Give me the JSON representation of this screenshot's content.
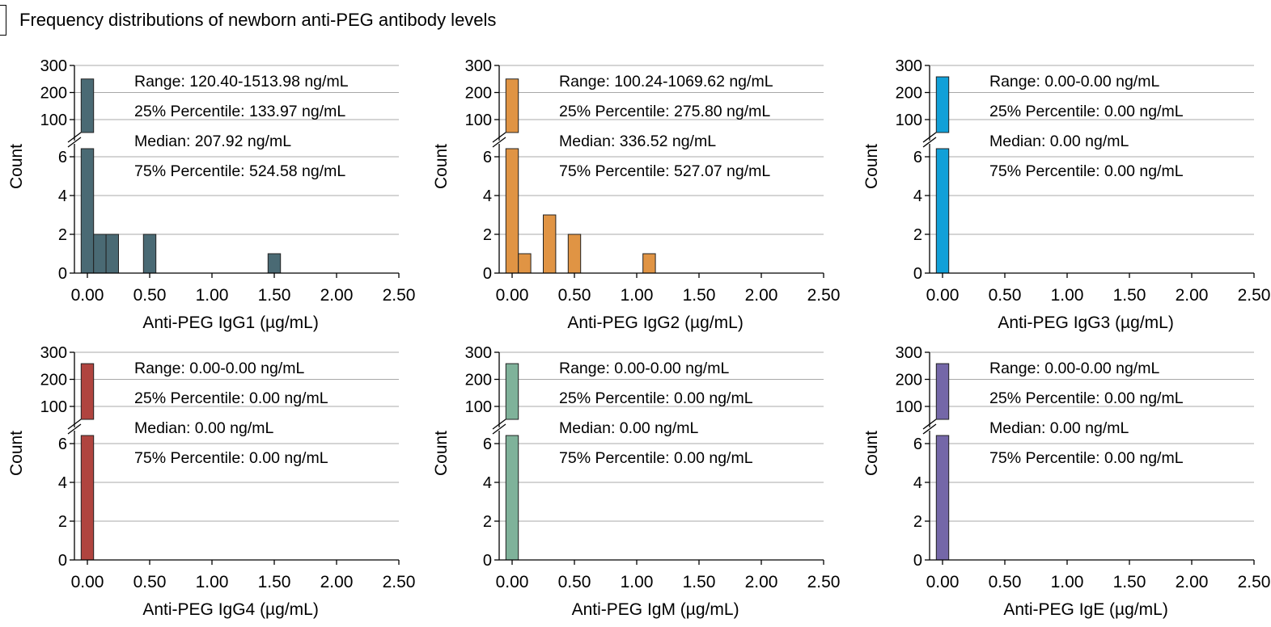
{
  "figure": {
    "title": "Frequency distributions of newborn anti-PEG antibody levels"
  },
  "chart_data": [
    {
      "type": "bar",
      "variant": "histogram-broken-y",
      "xlabel": "Anti-PEG IgG1 (µg/mL)",
      "ylabel": "Count",
      "color": "#4a6a74",
      "x_ticks": [
        "0.00",
        "0.50",
        "1.00",
        "1.50",
        "2.00",
        "2.50"
      ],
      "xlim": [
        -0.08,
        2.5
      ],
      "ylim_lower": [
        0,
        6
      ],
      "ylim_upper": [
        100,
        300
      ],
      "y_ticks_lower": [
        "0",
        "2",
        "4",
        "6"
      ],
      "y_ticks_upper": [
        "100",
        "200",
        "300"
      ],
      "grid": true,
      "bin_width": 0.1,
      "bins": [
        {
          "x": 0.0,
          "count": 250
        },
        {
          "x": 0.1,
          "count": 2
        },
        {
          "x": 0.2,
          "count": 2
        },
        {
          "x": 0.5,
          "count": 2
        },
        {
          "x": 1.5,
          "count": 1
        }
      ],
      "annotations": [
        "Range: 120.40-1513.98 ng/mL",
        "25% Percentile: 133.97 ng/mL",
        "Median: 207.92 ng/mL",
        "75% Percentile: 524.58 ng/mL"
      ]
    },
    {
      "type": "bar",
      "variant": "histogram-broken-y",
      "xlabel": "Anti-PEG IgG2 (µg/mL)",
      "ylabel": "Count",
      "color": "#e09444",
      "x_ticks": [
        "0.00",
        "0.50",
        "1.00",
        "1.50",
        "2.00",
        "2.50"
      ],
      "xlim": [
        -0.08,
        2.5
      ],
      "ylim_lower": [
        0,
        6
      ],
      "ylim_upper": [
        100,
        300
      ],
      "y_ticks_lower": [
        "0",
        "2",
        "4",
        "6"
      ],
      "y_ticks_upper": [
        "100",
        "200",
        "300"
      ],
      "grid": true,
      "bin_width": 0.1,
      "bins": [
        {
          "x": 0.0,
          "count": 250
        },
        {
          "x": 0.1,
          "count": 1
        },
        {
          "x": 0.3,
          "count": 3
        },
        {
          "x": 0.5,
          "count": 2
        },
        {
          "x": 1.1,
          "count": 1
        }
      ],
      "annotations": [
        "Range: 100.24-1069.62 ng/mL",
        "25% Percentile: 275.80 ng/mL",
        "Median: 336.52 ng/mL",
        "75% Percentile: 527.07 ng/mL"
      ]
    },
    {
      "type": "bar",
      "variant": "histogram-broken-y",
      "xlabel": "Anti-PEG IgG3 (µg/mL)",
      "ylabel": "Count",
      "color": "#11a0d8",
      "x_ticks": [
        "0.00",
        "0.50",
        "1.00",
        "1.50",
        "2.00",
        "2.50"
      ],
      "xlim": [
        -0.08,
        2.5
      ],
      "ylim_lower": [
        0,
        6
      ],
      "ylim_upper": [
        100,
        300
      ],
      "y_ticks_lower": [
        "0",
        "2",
        "4",
        "6"
      ],
      "y_ticks_upper": [
        "100",
        "200",
        "300"
      ],
      "grid": true,
      "bin_width": 0.1,
      "bins": [
        {
          "x": 0.0,
          "count": 258
        }
      ],
      "annotations": [
        "Range: 0.00-0.00 ng/mL",
        "25% Percentile: 0.00 ng/mL",
        "Median: 0.00 ng/mL",
        "75% Percentile: 0.00 ng/mL"
      ]
    },
    {
      "type": "bar",
      "variant": "histogram-broken-y",
      "xlabel": "Anti-PEG IgG4 (µg/mL)",
      "ylabel": "Count",
      "color": "#b0443f",
      "x_ticks": [
        "0.00",
        "0.50",
        "1.00",
        "1.50",
        "2.00",
        "2.50"
      ],
      "xlim": [
        -0.08,
        2.5
      ],
      "ylim_lower": [
        0,
        6
      ],
      "ylim_upper": [
        100,
        300
      ],
      "y_ticks_lower": [
        "0",
        "2",
        "4",
        "6"
      ],
      "y_ticks_upper": [
        "100",
        "200",
        "300"
      ],
      "grid": true,
      "bin_width": 0.1,
      "bins": [
        {
          "x": 0.0,
          "count": 258
        }
      ],
      "annotations": [
        "Range: 0.00-0.00 ng/mL",
        "25% Percentile: 0.00 ng/mL",
        "Median: 0.00 ng/mL",
        "75% Percentile: 0.00 ng/mL"
      ]
    },
    {
      "type": "bar",
      "variant": "histogram-broken-y",
      "xlabel": "Anti-PEG IgM (µg/mL)",
      "ylabel": "Count",
      "color": "#7fb29a",
      "x_ticks": [
        "0.00",
        "0.50",
        "1.00",
        "1.50",
        "2.00",
        "2.50"
      ],
      "xlim": [
        -0.08,
        2.5
      ],
      "ylim_lower": [
        0,
        6
      ],
      "ylim_upper": [
        100,
        300
      ],
      "y_ticks_lower": [
        "0",
        "2",
        "4",
        "6"
      ],
      "y_ticks_upper": [
        "100",
        "200",
        "300"
      ],
      "grid": true,
      "bin_width": 0.1,
      "bins": [
        {
          "x": 0.0,
          "count": 258
        }
      ],
      "annotations": [
        "Range: 0.00-0.00 ng/mL",
        "25% Percentile: 0.00 ng/mL",
        "Median: 0.00 ng/mL",
        "75% Percentile: 0.00 ng/mL"
      ]
    },
    {
      "type": "bar",
      "variant": "histogram-broken-y",
      "xlabel": "Anti-PEG IgE (µg/mL)",
      "ylabel": "Count",
      "color": "#7467a8",
      "x_ticks": [
        "0.00",
        "0.50",
        "1.00",
        "1.50",
        "2.00",
        "2.50"
      ],
      "xlim": [
        -0.08,
        2.5
      ],
      "ylim_lower": [
        0,
        6
      ],
      "ylim_upper": [
        100,
        300
      ],
      "y_ticks_lower": [
        "0",
        "2",
        "4",
        "6"
      ],
      "y_ticks_upper": [
        "100",
        "200",
        "300"
      ],
      "grid": true,
      "bin_width": 0.1,
      "bins": [
        {
          "x": 0.0,
          "count": 258
        }
      ],
      "annotations": [
        "Range: 0.00-0.00 ng/mL",
        "25% Percentile: 0.00 ng/mL",
        "Median: 0.00 ng/mL",
        "75% Percentile: 0.00 ng/mL"
      ]
    }
  ]
}
